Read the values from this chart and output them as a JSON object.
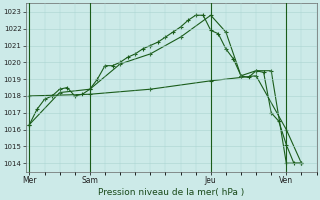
{
  "background_color": "#cceae8",
  "grid_color": "#aad4d0",
  "line_color": "#1a5c1a",
  "title": "Pression niveau de la mer( hPa )",
  "ylim": [
    1013.5,
    1023.5
  ],
  "yticks": [
    1014,
    1015,
    1016,
    1017,
    1018,
    1019,
    1020,
    1021,
    1022,
    1023
  ],
  "day_labels": [
    "Mer",
    "Sam",
    "Jeu",
    "Ven"
  ],
  "day_positions": [
    0,
    8,
    24,
    34
  ],
  "xlim": [
    -0.5,
    38
  ],
  "series1_x": [
    0,
    1,
    2,
    3,
    4,
    5,
    6,
    7,
    8,
    9,
    10,
    11,
    12,
    13,
    14,
    15,
    16,
    17,
    18,
    19,
    20,
    21,
    22,
    23,
    24,
    25,
    26,
    27,
    28,
    29,
    30,
    31,
    32,
    33,
    34,
    35,
    36
  ],
  "series1_y": [
    1016.3,
    1017.2,
    1017.8,
    1018.0,
    1018.4,
    1018.5,
    1018.0,
    1018.1,
    1018.4,
    1019.0,
    1019.8,
    1019.8,
    1020.0,
    1020.3,
    1020.5,
    1020.8,
    1021.0,
    1021.2,
    1021.5,
    1021.8,
    1022.1,
    1022.5,
    1022.8,
    1022.8,
    1021.9,
    1021.7,
    1020.8,
    1020.2,
    1019.2,
    1019.1,
    1019.5,
    1019.4,
    1017.0,
    1016.5,
    1015.1,
    1014.0,
    1014.0
  ],
  "series2_x": [
    0,
    4,
    8,
    12,
    16,
    20,
    24,
    26,
    28,
    30,
    32,
    34,
    36
  ],
  "series2_y": [
    1016.3,
    1018.2,
    1018.4,
    1019.9,
    1020.5,
    1021.5,
    1022.8,
    1021.8,
    1019.2,
    1019.5,
    1019.5,
    1014.0,
    1014.0
  ],
  "series3_x": [
    0,
    8,
    16,
    24,
    30,
    34,
    36
  ],
  "series3_y": [
    1018.0,
    1018.1,
    1018.4,
    1018.9,
    1019.2,
    1016.0,
    1014.0
  ]
}
